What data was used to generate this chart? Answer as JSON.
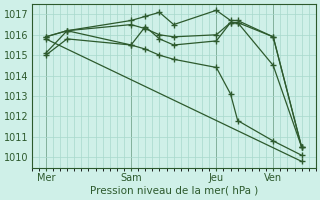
{
  "bg_color": "#cff0e8",
  "grid_color": "#a8d8cc",
  "line_color": "#2d5a2d",
  "marker_color": "#2d5a2d",
  "title": "Pression niveau de la mer( hPa )",
  "ylim": [
    1009.5,
    1017.5
  ],
  "yticks": [
    1010,
    1011,
    1012,
    1013,
    1014,
    1015,
    1016,
    1017
  ],
  "xtick_labels": [
    "Mer",
    "Sam",
    "Jeu",
    "Ven"
  ],
  "xtick_positions": [
    2,
    14,
    26,
    34
  ],
  "xlim": [
    0,
    40
  ],
  "vline_positions": [
    2,
    14,
    26,
    34
  ],
  "series": [
    {
      "x": [
        2,
        5,
        14,
        16,
        18,
        20,
        26,
        28,
        29,
        34,
        38
      ],
      "y": [
        1015.9,
        1016.2,
        1016.5,
        1016.3,
        1016.0,
        1015.9,
        1016.0,
        1016.6,
        1016.6,
        1015.9,
        1010.5
      ]
    },
    {
      "x": [
        2,
        5,
        14,
        16,
        18,
        20,
        26,
        28,
        29,
        34,
        38
      ],
      "y": [
        1015.1,
        1016.2,
        1016.7,
        1016.9,
        1017.1,
        1016.5,
        1017.2,
        1016.7,
        1016.7,
        1015.9,
        1010.5
      ]
    },
    {
      "x": [
        2,
        5,
        14,
        16,
        18,
        20,
        26,
        28,
        29,
        34,
        38
      ],
      "y": [
        1015.9,
        1016.2,
        1015.5,
        1016.4,
        1015.8,
        1015.5,
        1015.7,
        1016.6,
        1016.6,
        1014.5,
        1010.5
      ]
    },
    {
      "x": [
        2,
        5,
        14,
        16,
        18,
        20,
        26,
        28,
        29,
        34,
        38
      ],
      "y": [
        1015.0,
        1015.8,
        1015.5,
        1015.3,
        1015.0,
        1014.8,
        1014.4,
        1013.1,
        1011.8,
        1010.8,
        1010.1
      ]
    },
    {
      "x": [
        2,
        38
      ],
      "y": [
        1015.8,
        1009.8
      ]
    }
  ]
}
